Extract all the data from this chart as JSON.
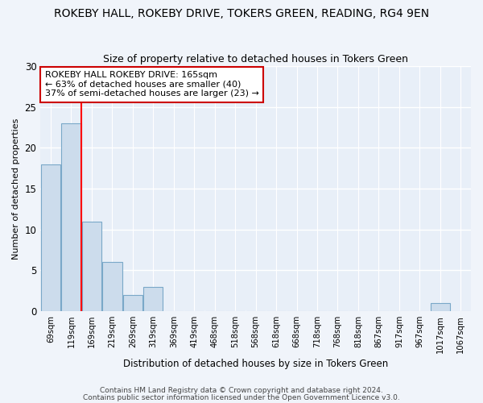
{
  "title": "ROKEBY HALL, ROKEBY DRIVE, TOKERS GREEN, READING, RG4 9EN",
  "subtitle": "Size of property relative to detached houses in Tokers Green",
  "xlabel": "Distribution of detached houses by size in Tokers Green",
  "ylabel": "Number of detached properties",
  "bin_labels": [
    "69sqm",
    "119sqm",
    "169sqm",
    "219sqm",
    "269sqm",
    "319sqm",
    "369sqm",
    "419sqm",
    "468sqm",
    "518sqm",
    "568sqm",
    "618sqm",
    "668sqm",
    "718sqm",
    "768sqm",
    "818sqm",
    "867sqm",
    "917sqm",
    "967sqm",
    "1017sqm",
    "1067sqm"
  ],
  "bar_values": [
    18,
    23,
    11,
    6,
    2,
    3,
    0,
    0,
    0,
    0,
    0,
    0,
    0,
    0,
    0,
    0,
    0,
    0,
    0,
    1,
    0
  ],
  "bar_color": "#ccdcec",
  "bar_edge_color": "#7aa8c8",
  "red_line_x": 1.5,
  "ylim": [
    0,
    30
  ],
  "yticks": [
    0,
    5,
    10,
    15,
    20,
    25,
    30
  ],
  "annotation_title": "ROKEBY HALL ROKEBY DRIVE: 165sqm",
  "annotation_line2": "← 63% of detached houses are smaller (40)",
  "annotation_line3": "37% of semi-detached houses are larger (23) →",
  "annotation_box_color": "#ffffff",
  "annotation_border_color": "#cc0000",
  "footer1": "Contains HM Land Registry data © Crown copyright and database right 2024.",
  "footer2": "Contains public sector information licensed under the Open Government Licence v3.0.",
  "background_color": "#f0f4fa",
  "plot_bg_color": "#e8eff8",
  "grid_color": "#ffffff"
}
